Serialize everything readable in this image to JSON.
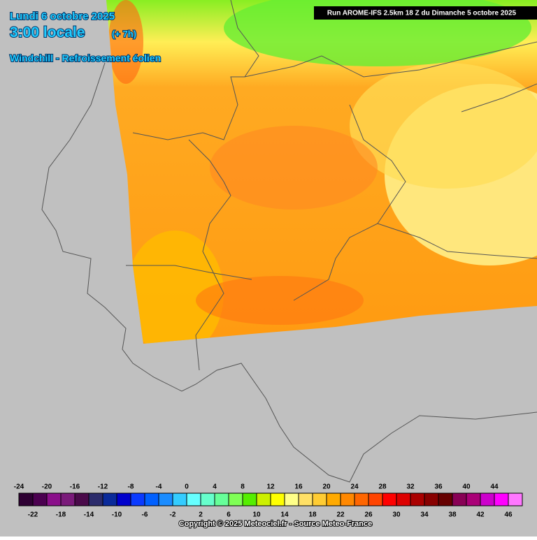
{
  "header": {
    "date": "Lundi 6 octobre 2025",
    "time": "3:00 locale",
    "offset": "(+ 7h)",
    "parameter": "Windchill - Refroissement éolien",
    "run": "Run AROME-IFS 2.5km 18 Z du Dimanche 5 octobre 2025"
  },
  "legend": {
    "ticks": [
      -24,
      -22,
      -20,
      -18,
      -16,
      -14,
      -12,
      -10,
      -8,
      -6,
      -4,
      -2,
      0,
      2,
      4,
      6,
      8,
      10,
      12,
      14,
      16,
      18,
      20,
      22,
      24,
      26,
      28,
      30,
      32,
      34,
      36,
      38,
      40,
      42,
      44,
      46
    ],
    "colors": [
      "#2e0033",
      "#4b0050",
      "#8a0f8a",
      "#7a1a7a",
      "#4a0a4a",
      "#2b2b6b",
      "#0a2a9a",
      "#0000cc",
      "#0a3aff",
      "#0060ff",
      "#1a8cff",
      "#33ccff",
      "#66ffff",
      "#66ffcc",
      "#66ff99",
      "#7fff55",
      "#55ee00",
      "#ccf000",
      "#ffff00",
      "#ffff88",
      "#ffe066",
      "#ffcc33",
      "#ffaa00",
      "#ff8800",
      "#ff6600",
      "#ff4400",
      "#ff0000",
      "#dd0000",
      "#aa0000",
      "#880000",
      "#660000",
      "#880055",
      "#aa0077",
      "#cc00cc",
      "#ff00ff",
      "#ff77ff"
    ]
  },
  "footer": {
    "copyright": "Copyright © 2025 Meteociel.fr - Source Meteo-France"
  }
}
